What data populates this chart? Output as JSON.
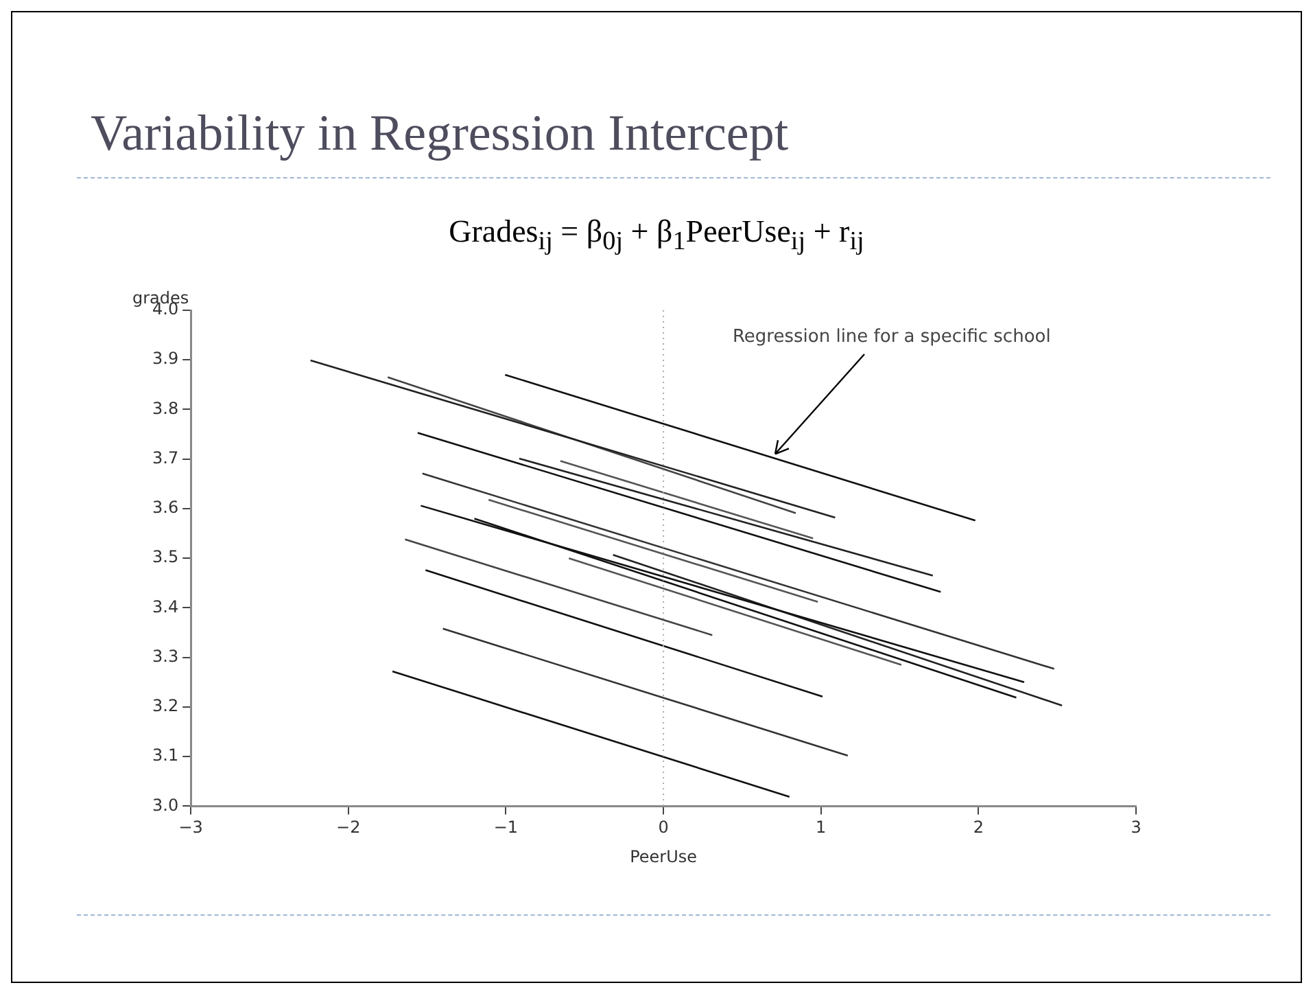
{
  "chart_data": {
    "type": "line",
    "title": "Variability in Regression Intercept",
    "subtitle": "Grades$_{ij}$ = β$_{0j}$ + β$_{1}$PeerUse$_{ij}$ + r$_{ij}$",
    "xlabel": "PeerUse",
    "ylabel": "grades",
    "xlim": [
      -3,
      3
    ],
    "xticks": [
      {
        "value": -3,
        "label": "−3"
      },
      {
        "value": -2,
        "label": "−2"
      },
      {
        "value": -1,
        "label": "−1"
      },
      0,
      1,
      2,
      3
    ],
    "ylim": [
      3,
      4
    ],
    "yticks": [
      {
        "value": 3,
        "label": "3.0"
      },
      3.1,
      3.2,
      3.3,
      3.4,
      3.5,
      3.6,
      3.7,
      3.8,
      3.9,
      {
        "value": 4,
        "label": "4.0"
      }
    ],
    "grid": false,
    "ref_lines": [
      {
        "axis": "x",
        "value": 0,
        "color": "#aaaaaa",
        "line_style": "dotted"
      }
    ],
    "annotations": [
      {
        "text": "Regression line for a specific school",
        "x": 0.7,
        "y": 3.702
      }
    ],
    "series": [
      {
        "color": "#111111",
        "x": [
          -1.005,
          1.98
        ],
        "values": [
          3.87,
          3.576
        ]
      },
      {
        "color": "#222222",
        "x": [
          -2.24,
          1.09
        ],
        "values": [
          3.899,
          3.582
        ]
      },
      {
        "color": "#444444",
        "x": [
          -1.75,
          0.84
        ],
        "values": [
          3.865,
          3.591
        ]
      },
      {
        "color": "#111111",
        "x": [
          -1.56,
          1.76
        ],
        "values": [
          3.753,
          3.432
        ]
      },
      {
        "color": "#222222",
        "x": [
          -0.915,
          1.71
        ],
        "values": [
          3.701,
          3.465
        ]
      },
      {
        "color": "#555555",
        "x": [
          -0.654,
          0.95
        ],
        "values": [
          3.696,
          3.54
        ]
      },
      {
        "color": "#333333",
        "x": [
          -1.53,
          2.48
        ],
        "values": [
          3.671,
          3.277
        ]
      },
      {
        "color": "#555555",
        "x": [
          -1.11,
          0.98
        ],
        "values": [
          3.618,
          3.412
        ]
      },
      {
        "color": "#111111",
        "x": [
          -1.54,
          2.29
        ],
        "values": [
          3.606,
          3.25
        ]
      },
      {
        "color": "#222222",
        "x": [
          -0.32,
          2.53
        ],
        "values": [
          3.507,
          3.203
        ]
      },
      {
        "color": "#111111",
        "x": [
          -1.2,
          2.24
        ],
        "values": [
          3.58,
          3.219
        ]
      },
      {
        "color": "#555555",
        "x": [
          -0.6,
          1.51
        ],
        "values": [
          3.5,
          3.285
        ]
      },
      {
        "color": "#444444",
        "x": [
          -1.64,
          0.31
        ],
        "values": [
          3.538,
          3.345
        ]
      },
      {
        "color": "#111111",
        "x": [
          -1.51,
          1.01
        ],
        "values": [
          3.476,
          3.221
        ]
      },
      {
        "color": "#333333",
        "x": [
          -1.4,
          1.17
        ],
        "values": [
          3.358,
          3.102
        ]
      },
      {
        "color": "#111111",
        "x": [
          -1.72,
          0.8
        ],
        "values": [
          3.272,
          3.019
        ]
      }
    ]
  }
}
